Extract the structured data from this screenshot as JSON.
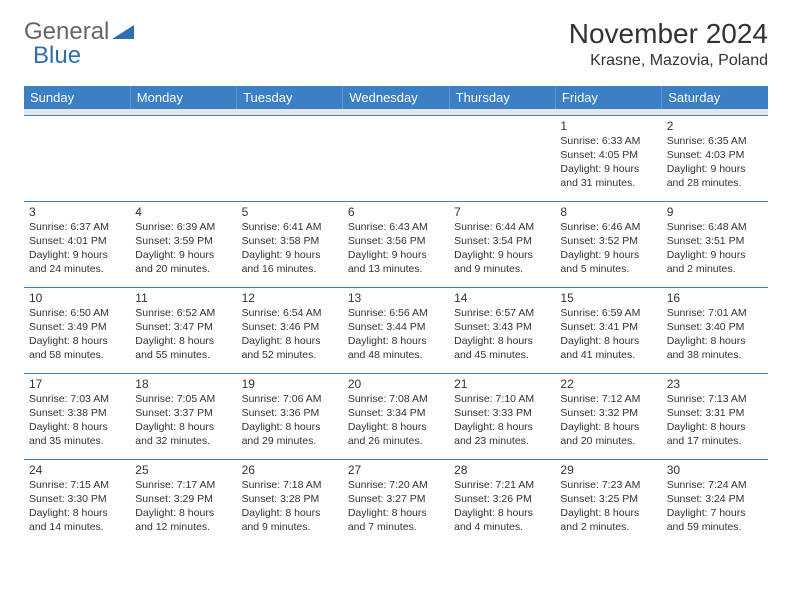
{
  "logo": {
    "text_a": "General",
    "text_b": "Blue",
    "color_gray": "#666666",
    "color_blue": "#2f6fb0"
  },
  "title": "November 2024",
  "location": "Krasne, Mazovia, Poland",
  "colors": {
    "header_bg": "#3b7fc4",
    "header_text": "#ffffff",
    "row_divider": "#3b7fc4",
    "spacer_bg": "#e6e6e6",
    "body_text": "#333333",
    "page_bg": "#ffffff"
  },
  "typography": {
    "day_header_fontsize": 13,
    "daynum_fontsize": 12,
    "info_fontsize": 10.5,
    "title_fontsize": 28,
    "location_fontsize": 16
  },
  "day_headers": [
    "Sunday",
    "Monday",
    "Tuesday",
    "Wednesday",
    "Thursday",
    "Friday",
    "Saturday"
  ],
  "weeks": [
    [
      {
        "n": "",
        "sr": "",
        "ss": "",
        "dl": ""
      },
      {
        "n": "",
        "sr": "",
        "ss": "",
        "dl": ""
      },
      {
        "n": "",
        "sr": "",
        "ss": "",
        "dl": ""
      },
      {
        "n": "",
        "sr": "",
        "ss": "",
        "dl": ""
      },
      {
        "n": "",
        "sr": "",
        "ss": "",
        "dl": ""
      },
      {
        "n": "1",
        "sr": "Sunrise: 6:33 AM",
        "ss": "Sunset: 4:05 PM",
        "dl": "Daylight: 9 hours and 31 minutes."
      },
      {
        "n": "2",
        "sr": "Sunrise: 6:35 AM",
        "ss": "Sunset: 4:03 PM",
        "dl": "Daylight: 9 hours and 28 minutes."
      }
    ],
    [
      {
        "n": "3",
        "sr": "Sunrise: 6:37 AM",
        "ss": "Sunset: 4:01 PM",
        "dl": "Daylight: 9 hours and 24 minutes."
      },
      {
        "n": "4",
        "sr": "Sunrise: 6:39 AM",
        "ss": "Sunset: 3:59 PM",
        "dl": "Daylight: 9 hours and 20 minutes."
      },
      {
        "n": "5",
        "sr": "Sunrise: 6:41 AM",
        "ss": "Sunset: 3:58 PM",
        "dl": "Daylight: 9 hours and 16 minutes."
      },
      {
        "n": "6",
        "sr": "Sunrise: 6:43 AM",
        "ss": "Sunset: 3:56 PM",
        "dl": "Daylight: 9 hours and 13 minutes."
      },
      {
        "n": "7",
        "sr": "Sunrise: 6:44 AM",
        "ss": "Sunset: 3:54 PM",
        "dl": "Daylight: 9 hours and 9 minutes."
      },
      {
        "n": "8",
        "sr": "Sunrise: 6:46 AM",
        "ss": "Sunset: 3:52 PM",
        "dl": "Daylight: 9 hours and 5 minutes."
      },
      {
        "n": "9",
        "sr": "Sunrise: 6:48 AM",
        "ss": "Sunset: 3:51 PM",
        "dl": "Daylight: 9 hours and 2 minutes."
      }
    ],
    [
      {
        "n": "10",
        "sr": "Sunrise: 6:50 AM",
        "ss": "Sunset: 3:49 PM",
        "dl": "Daylight: 8 hours and 58 minutes."
      },
      {
        "n": "11",
        "sr": "Sunrise: 6:52 AM",
        "ss": "Sunset: 3:47 PM",
        "dl": "Daylight: 8 hours and 55 minutes."
      },
      {
        "n": "12",
        "sr": "Sunrise: 6:54 AM",
        "ss": "Sunset: 3:46 PM",
        "dl": "Daylight: 8 hours and 52 minutes."
      },
      {
        "n": "13",
        "sr": "Sunrise: 6:56 AM",
        "ss": "Sunset: 3:44 PM",
        "dl": "Daylight: 8 hours and 48 minutes."
      },
      {
        "n": "14",
        "sr": "Sunrise: 6:57 AM",
        "ss": "Sunset: 3:43 PM",
        "dl": "Daylight: 8 hours and 45 minutes."
      },
      {
        "n": "15",
        "sr": "Sunrise: 6:59 AM",
        "ss": "Sunset: 3:41 PM",
        "dl": "Daylight: 8 hours and 41 minutes."
      },
      {
        "n": "16",
        "sr": "Sunrise: 7:01 AM",
        "ss": "Sunset: 3:40 PM",
        "dl": "Daylight: 8 hours and 38 minutes."
      }
    ],
    [
      {
        "n": "17",
        "sr": "Sunrise: 7:03 AM",
        "ss": "Sunset: 3:38 PM",
        "dl": "Daylight: 8 hours and 35 minutes."
      },
      {
        "n": "18",
        "sr": "Sunrise: 7:05 AM",
        "ss": "Sunset: 3:37 PM",
        "dl": "Daylight: 8 hours and 32 minutes."
      },
      {
        "n": "19",
        "sr": "Sunrise: 7:06 AM",
        "ss": "Sunset: 3:36 PM",
        "dl": "Daylight: 8 hours and 29 minutes."
      },
      {
        "n": "20",
        "sr": "Sunrise: 7:08 AM",
        "ss": "Sunset: 3:34 PM",
        "dl": "Daylight: 8 hours and 26 minutes."
      },
      {
        "n": "21",
        "sr": "Sunrise: 7:10 AM",
        "ss": "Sunset: 3:33 PM",
        "dl": "Daylight: 8 hours and 23 minutes."
      },
      {
        "n": "22",
        "sr": "Sunrise: 7:12 AM",
        "ss": "Sunset: 3:32 PM",
        "dl": "Daylight: 8 hours and 20 minutes."
      },
      {
        "n": "23",
        "sr": "Sunrise: 7:13 AM",
        "ss": "Sunset: 3:31 PM",
        "dl": "Daylight: 8 hours and 17 minutes."
      }
    ],
    [
      {
        "n": "24",
        "sr": "Sunrise: 7:15 AM",
        "ss": "Sunset: 3:30 PM",
        "dl": "Daylight: 8 hours and 14 minutes."
      },
      {
        "n": "25",
        "sr": "Sunrise: 7:17 AM",
        "ss": "Sunset: 3:29 PM",
        "dl": "Daylight: 8 hours and 12 minutes."
      },
      {
        "n": "26",
        "sr": "Sunrise: 7:18 AM",
        "ss": "Sunset: 3:28 PM",
        "dl": "Daylight: 8 hours and 9 minutes."
      },
      {
        "n": "27",
        "sr": "Sunrise: 7:20 AM",
        "ss": "Sunset: 3:27 PM",
        "dl": "Daylight: 8 hours and 7 minutes."
      },
      {
        "n": "28",
        "sr": "Sunrise: 7:21 AM",
        "ss": "Sunset: 3:26 PM",
        "dl": "Daylight: 8 hours and 4 minutes."
      },
      {
        "n": "29",
        "sr": "Sunrise: 7:23 AM",
        "ss": "Sunset: 3:25 PM",
        "dl": "Daylight: 8 hours and 2 minutes."
      },
      {
        "n": "30",
        "sr": "Sunrise: 7:24 AM",
        "ss": "Sunset: 3:24 PM",
        "dl": "Daylight: 7 hours and 59 minutes."
      }
    ]
  ]
}
